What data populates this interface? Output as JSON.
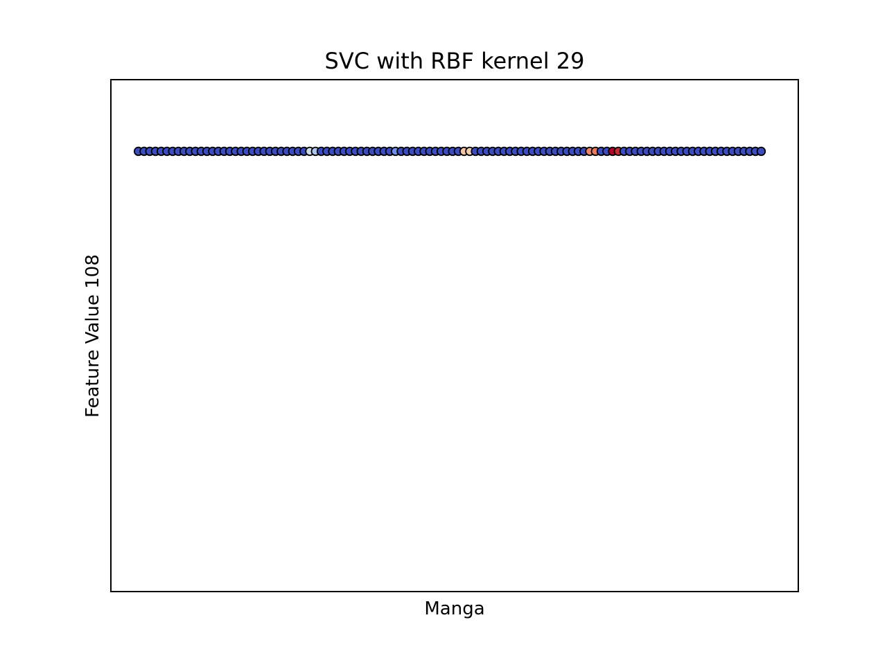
{
  "chart_data": {
    "type": "scatter",
    "title": "SVC with RBF kernel 29",
    "xlabel": "Manga",
    "ylabel": "Feature Value 108",
    "xlim": [
      0,
      1
    ],
    "ylim": [
      0,
      1
    ],
    "x_ticks_visible": false,
    "y_ticks_visible": false,
    "grid": false,
    "legend": "none",
    "point_count": 110,
    "point_y": 0.86,
    "x_start": 0.04,
    "x_end": 0.946,
    "colormap": "coolwarm",
    "default_color": "#3b4cc0",
    "edge_color": "#000000",
    "highlight_points": [
      {
        "index": 30,
        "color": "#d0d9e8"
      },
      {
        "index": 31,
        "color": "#aec6ea"
      },
      {
        "index": 45,
        "color": "#6e8ee8"
      },
      {
        "index": 57,
        "color": "#f5c3a6"
      },
      {
        "index": 58,
        "color": "#f1cdb4"
      },
      {
        "index": 79,
        "color": "#ee8468"
      },
      {
        "index": 80,
        "color": "#e9785d"
      },
      {
        "index": 83,
        "color": "#b40426"
      },
      {
        "index": 84,
        "color": "#c32b2f"
      }
    ]
  }
}
